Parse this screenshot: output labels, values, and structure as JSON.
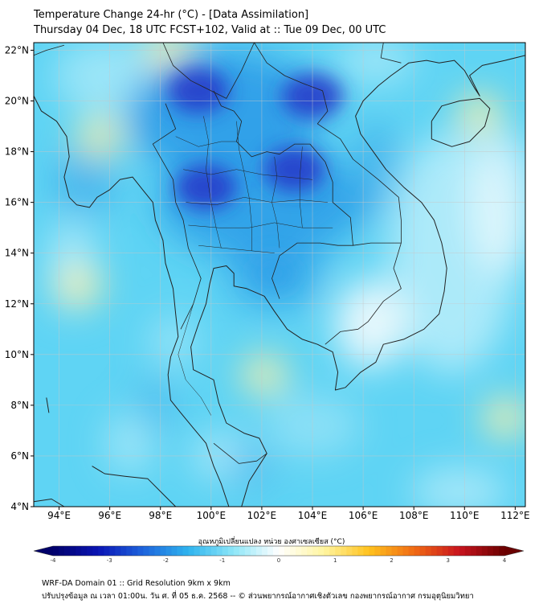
{
  "header": {
    "title_line1": "Temperature Change 24-hr (°C) - [Data Assimilation]",
    "title_line2": "Thursday 04 Dec, 18 UTC FCST+102, Valid at :: Tue 09 Dec, 00 UTC"
  },
  "map": {
    "lat_labels": [
      "22°N",
      "20°N",
      "18°N",
      "16°N",
      "14°N",
      "12°N",
      "10°N",
      "8°N",
      "6°N",
      "4°N"
    ],
    "lon_labels": [
      "94°E",
      "96°E",
      "98°E",
      "100°E",
      "102°E",
      "104°E",
      "106°E",
      "108°E",
      "110°E",
      "112°E"
    ],
    "lat_range": [
      4,
      22.3
    ],
    "lon_range": [
      93,
      112.4
    ],
    "variable": "24-hr temperature change",
    "colors": {
      "deep_blue": "#2436c8",
      "mid_blue": "#2f9ee8",
      "light_blue": "#5fd4f4",
      "pale_blue": "#b5ecfa",
      "neutral": "#f4fbfd",
      "yellow": "#fff1a8",
      "coast": "#222222",
      "grid": "#c8c8c8"
    },
    "cooling_cores": [
      {
        "lon": 99.5,
        "lat": 20.4,
        "level": "strong"
      },
      {
        "lon": 104.0,
        "lat": 20.2,
        "level": "strong"
      },
      {
        "lon": 99.8,
        "lat": 16.6,
        "level": "strong"
      },
      {
        "lon": 103.3,
        "lat": 17.3,
        "level": "strong"
      },
      {
        "lon": 102.5,
        "lat": 13.2,
        "level": "moderate"
      }
    ],
    "warm_spots": [
      {
        "lon": 98.3,
        "lat": 22.1
      },
      {
        "lon": 95.6,
        "lat": 18.6
      },
      {
        "lon": 110.6,
        "lat": 19.5
      },
      {
        "lon": 111.6,
        "lat": 7.5
      },
      {
        "lon": 94.8,
        "lat": 12.7
      },
      {
        "lon": 102.1,
        "lat": 9.2
      }
    ]
  },
  "colorbar": {
    "title": "อุณหภูมิเปลี่ยนแปลง หน่วย องศาเซลเซียส (°C)",
    "ticks": [
      "-4",
      "-3",
      "-2",
      "-1",
      "0",
      "1",
      "2",
      "3",
      "4"
    ],
    "range": [
      -4,
      4
    ],
    "stops": [
      "#00006a",
      "#0a14b4",
      "#1e64dc",
      "#2fb4ee",
      "#8ee6f8",
      "#ffffff",
      "#fff5a0",
      "#ffc21e",
      "#f06a14",
      "#c8141e",
      "#6a0000"
    ]
  },
  "footer": {
    "line1": "WRF-DA Domain 01 :: Grid Resolution 9km x 9km",
    "line2": "ปรับปรุงข้อมูล ณ เวลา 01:00น. วัน ศ. ที่ 05 ธ.ค. 2568 -- © ส่วนพยากรณ์อากาศเชิงตัวเลข กองพยากรณ์อากาศ กรมอุตุนิยมวิทยา"
  }
}
